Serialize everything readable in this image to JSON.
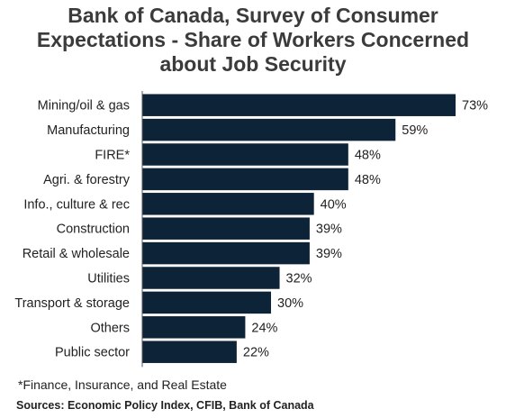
{
  "title_lines": [
    "Bank of Canada, Survey of Consumer",
    "Expectations - Share of Workers Concerned",
    "about Job Security"
  ],
  "footnote": "*Finance, Insurance, and Real Estate",
  "source": "Sources: Economic Policy Index, CFIB, Bank of Canada",
  "colors": {
    "bar": "#0d2438",
    "axis": "#555555"
  },
  "chart_data": {
    "type": "bar",
    "orientation": "horizontal",
    "title": "Bank of Canada, Survey of Consumer Expectations - Share of Workers Concerned about Job Security",
    "categories": [
      "Mining/oil & gas",
      "Manufacturing",
      "FIRE*",
      "Agri. & forestry",
      "Info., culture & rec",
      "Construction",
      "Retail & wholesale",
      "Utilities",
      "Transport & storage",
      "Others",
      "Public sector"
    ],
    "values": [
      73,
      59,
      48,
      48,
      40,
      39,
      39,
      32,
      30,
      24,
      22
    ],
    "labels": [
      "73%",
      "59%",
      "48%",
      "48%",
      "40%",
      "39%",
      "39%",
      "32%",
      "30%",
      "24%",
      "22%"
    ],
    "unit": "%",
    "xlim": [
      0,
      73
    ],
    "grid": false,
    "legend": "none"
  }
}
